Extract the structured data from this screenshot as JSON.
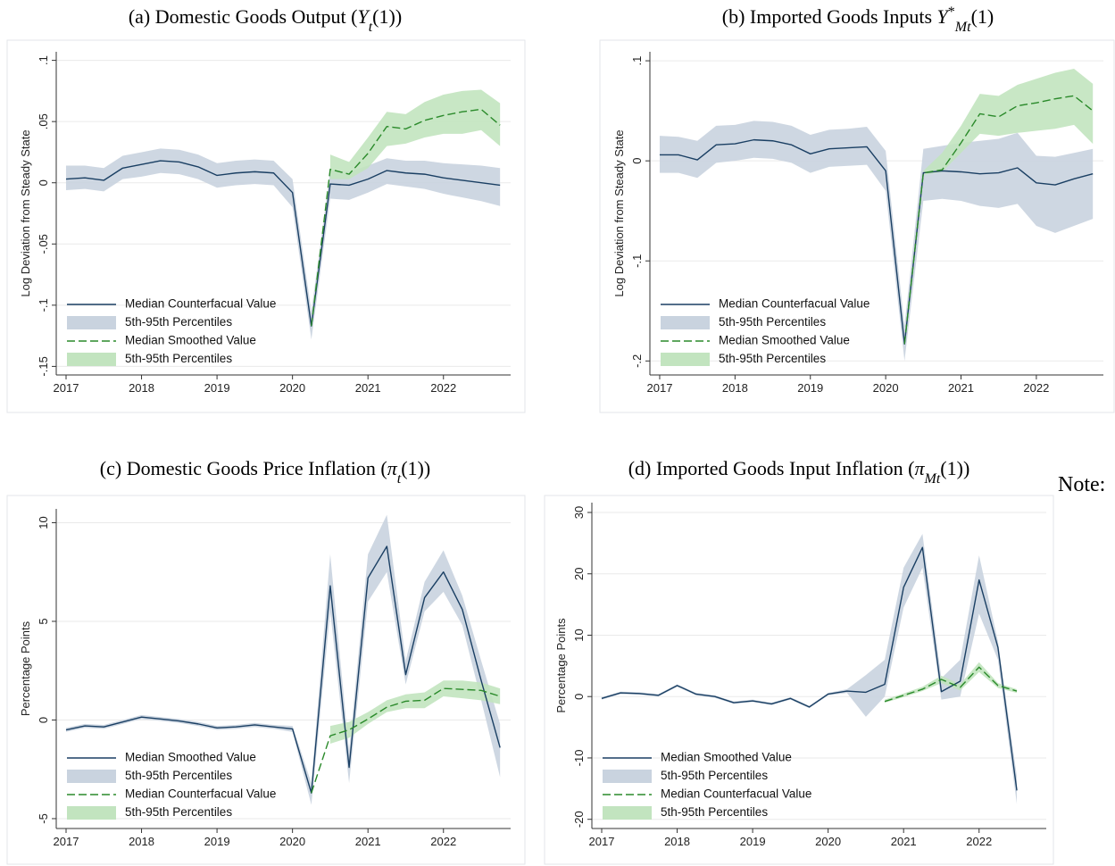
{
  "note": "Note:",
  "chart_data": [
    {
      "type": "line",
      "title": [
        "(a) Domestic Goods Output (",
        "Y",
        "t",
        "(1))"
      ],
      "title_style": [
        "normal",
        "italic",
        "sub",
        "normal"
      ],
      "ylabel": "Log Deviation from Steady State",
      "x": [
        2017,
        2017.25,
        2017.5,
        2017.75,
        2018,
        2018.25,
        2018.5,
        2018.75,
        2019,
        2019.25,
        2019.5,
        2019.75,
        2020,
        2020.25,
        2020.5,
        2020.75,
        2021,
        2021.25,
        2021.5,
        2021.75,
        2022,
        2022.25,
        2022.5,
        2022.75
      ],
      "xlim": [
        2016.87,
        2022.89
      ],
      "xticks": [
        2017,
        2018,
        2019,
        2020,
        2021,
        2022
      ],
      "ylim": [
        -0.157,
        0.107
      ],
      "yticks": [
        {
          "value": -0.15,
          "label": "-.15"
        },
        {
          "value": -0.1,
          "label": "-.1"
        },
        {
          "value": -0.05,
          "label": "-.05"
        },
        0,
        {
          "value": 0.05,
          "label": ".05"
        },
        {
          "value": 0.1,
          "label": ".1"
        }
      ],
      "grid": true,
      "legend": "lower left",
      "series": [
        {
          "name": "Median Counterfacual Value",
          "color": "#1a3f63",
          "style": "solid",
          "values": [
            0.003,
            0.004,
            0.002,
            0.012,
            0.015,
            0.018,
            0.017,
            0.013,
            0.006,
            0.008,
            0.009,
            0.008,
            -0.008,
            -0.117,
            -0.001,
            -0.002,
            0.003,
            0.01,
            0.008,
            0.007,
            0.004,
            0.002,
            0,
            -0.002
          ]
        },
        {
          "name": "5th-95th Percentiles",
          "color": "#c9d3df",
          "lower": [
            -0.006,
            -0.005,
            -0.007,
            0.003,
            0.005,
            0.008,
            0.007,
            0.003,
            -0.004,
            -0.002,
            -0.001,
            -0.002,
            -0.02,
            -0.128,
            -0.013,
            -0.014,
            -0.008,
            -0.001,
            -0.003,
            -0.005,
            -0.009,
            -0.012,
            -0.015,
            -0.019
          ],
          "upper": [
            0.014,
            0.014,
            0.012,
            0.022,
            0.025,
            0.028,
            0.027,
            0.023,
            0.016,
            0.018,
            0.019,
            0.018,
            0.003,
            -0.105,
            0.01,
            0.009,
            0.014,
            0.02,
            0.018,
            0.018,
            0.016,
            0.015,
            0.014,
            0.012
          ]
        },
        {
          "name": "Median Smoothed Value",
          "color": "#2a8a2a",
          "style": "dashed",
          "values": [
            null,
            null,
            null,
            null,
            null,
            null,
            null,
            null,
            null,
            null,
            null,
            null,
            null,
            -0.117,
            0.011,
            0.007,
            0.024,
            0.046,
            0.044,
            0.051,
            0.055,
            0.058,
            0.06,
            0.047
          ]
        },
        {
          "name": "5th-95th Percentiles",
          "color": "#c2e4bf",
          "lower": [
            null,
            null,
            null,
            null,
            null,
            null,
            null,
            null,
            null,
            null,
            null,
            null,
            null,
            null,
            0.003,
            0.003,
            0.012,
            0.03,
            0.032,
            0.037,
            0.04,
            0.04,
            0.043,
            0.03
          ],
          "upper": [
            null,
            null,
            null,
            null,
            null,
            null,
            null,
            null,
            null,
            null,
            null,
            null,
            null,
            null,
            0.023,
            0.017,
            0.037,
            0.058,
            0.056,
            0.066,
            0.072,
            0.075,
            0.076,
            0.065
          ]
        }
      ]
    },
    {
      "type": "line",
      "title": [
        "(b) Imported Goods Inputs ",
        "Y",
        "*",
        "Mt",
        "(1)"
      ],
      "title_style": [
        "normal",
        "italic",
        "sup",
        "sub",
        "normal"
      ],
      "ylabel": "Log Deviation from Steady State",
      "x": [
        2017,
        2017.25,
        2017.5,
        2017.75,
        2018,
        2018.25,
        2018.5,
        2018.75,
        2019,
        2019.25,
        2019.5,
        2019.75,
        2020,
        2020.25,
        2020.5,
        2020.75,
        2021,
        2021.25,
        2021.5,
        2021.75,
        2022,
        2022.25,
        2022.5,
        2022.75
      ],
      "xlim": [
        2016.87,
        2022.89
      ],
      "xticks": [
        2017,
        2018,
        2019,
        2020,
        2021,
        2022
      ],
      "ylim": [
        -0.214,
        0.109
      ],
      "yticks": [
        {
          "value": -0.2,
          "label": "-.2"
        },
        {
          "value": -0.1,
          "label": "-.1"
        },
        0,
        {
          "value": 0.1,
          "label": ".1"
        }
      ],
      "grid": true,
      "legend": "lower left",
      "series": [
        {
          "name": "Median Counterfacual Value",
          "color": "#1a3f63",
          "style": "solid",
          "values": [
            0.006,
            0.006,
            0.001,
            0.016,
            0.017,
            0.021,
            0.02,
            0.016,
            0.007,
            0.012,
            0.013,
            0.014,
            -0.01,
            -0.183,
            -0.012,
            -0.01,
            -0.011,
            -0.013,
            -0.012,
            -0.007,
            -0.022,
            -0.024,
            -0.018,
            -0.013
          ]
        },
        {
          "name": "5th-95th Percentiles",
          "color": "#c9d3df",
          "lower": [
            -0.012,
            -0.012,
            -0.017,
            -0.002,
            0,
            0.003,
            0.002,
            -0.002,
            -0.012,
            -0.006,
            -0.005,
            -0.004,
            -0.03,
            -0.2,
            -0.04,
            -0.038,
            -0.04,
            -0.045,
            -0.047,
            -0.043,
            -0.065,
            -0.072,
            -0.065,
            -0.058
          ],
          "upper": [
            0.025,
            0.024,
            0.02,
            0.035,
            0.036,
            0.04,
            0.039,
            0.035,
            0.026,
            0.031,
            0.032,
            0.034,
            0.01,
            -0.165,
            0.012,
            0.015,
            0.018,
            0.02,
            0.022,
            0.028,
            0.005,
            0.004,
            0.008,
            0.012
          ]
        },
        {
          "name": "Median Smoothed Value",
          "color": "#2a8a2a",
          "style": "dashed",
          "values": [
            null,
            null,
            null,
            null,
            null,
            null,
            null,
            null,
            null,
            null,
            null,
            null,
            null,
            -0.183,
            -0.012,
            -0.009,
            0.018,
            0.047,
            0.044,
            0.055,
            0.058,
            0.062,
            0.065,
            0.05
          ]
        },
        {
          "name": "5th-95th Percentiles",
          "color": "#c2e4bf",
          "lower": [
            null,
            null,
            null,
            null,
            null,
            null,
            null,
            null,
            null,
            null,
            null,
            null,
            null,
            null,
            -0.014,
            -0.011,
            0.008,
            0.027,
            0.025,
            0.028,
            0.03,
            0.032,
            0.036,
            0.017
          ],
          "upper": [
            null,
            null,
            null,
            null,
            null,
            null,
            null,
            null,
            null,
            null,
            null,
            null,
            null,
            null,
            -0.01,
            0.008,
            0.035,
            0.067,
            0.065,
            0.076,
            0.082,
            0.088,
            0.092,
            0.077
          ]
        }
      ]
    },
    {
      "type": "line",
      "title": [
        "(c) Domestic Goods Price Inflation (",
        "π",
        "t",
        "(1))"
      ],
      "title_style": [
        "normal",
        "italic",
        "sub",
        "normal"
      ],
      "ylabel": "Percentage Points",
      "x": [
        2017,
        2017.25,
        2017.5,
        2017.75,
        2018,
        2018.25,
        2018.5,
        2018.75,
        2019,
        2019.25,
        2019.5,
        2019.75,
        2020,
        2020.25,
        2020.5,
        2020.75,
        2021,
        2021.25,
        2021.5,
        2021.75,
        2022,
        2022.25,
        2022.5,
        2022.75
      ],
      "xlim": [
        2016.87,
        2022.89
      ],
      "xticks": [
        2017,
        2018,
        2019,
        2020,
        2021,
        2022
      ],
      "ylim": [
        -5.5,
        10.7
      ],
      "yticks": [
        -5,
        0,
        5,
        10
      ],
      "grid": true,
      "legend": "lower left",
      "series": [
        {
          "name": "Median Smoothed Value",
          "color": "#1a3f63",
          "style": "solid",
          "values": [
            -0.5,
            -0.3,
            -0.35,
            -0.1,
            0.15,
            0.05,
            -0.05,
            -0.2,
            -0.4,
            -0.35,
            -0.25,
            -0.35,
            -0.45,
            -3.7,
            6.8,
            -2.4,
            7.2,
            8.8,
            2.3,
            6.2,
            7.5,
            5.6,
            2.0,
            -1.4
          ]
        },
        {
          "name": "5th-95th Percentiles",
          "color": "#c9d3df",
          "lower": [
            -0.6,
            -0.4,
            -0.45,
            -0.2,
            0.05,
            -0.05,
            -0.15,
            -0.3,
            -0.5,
            -0.45,
            -0.35,
            -0.45,
            -0.6,
            -4.3,
            5.5,
            -3.2,
            6.0,
            7.5,
            1.8,
            5.5,
            6.5,
            4.8,
            1.0,
            -2.9
          ],
          "upper": [
            -0.4,
            -0.2,
            -0.25,
            0,
            0.25,
            0.15,
            0.05,
            -0.1,
            -0.3,
            -0.25,
            -0.15,
            -0.25,
            -0.3,
            -3.2,
            8.4,
            -1.6,
            8.4,
            10.4,
            3.0,
            7.0,
            8.6,
            6.3,
            3.0,
            -0.2
          ]
        },
        {
          "name": "Median Counterfacual Value",
          "color": "#2a8a2a",
          "style": "dashed",
          "values": [
            null,
            null,
            null,
            null,
            null,
            null,
            null,
            null,
            null,
            null,
            null,
            null,
            null,
            -3.7,
            -0.8,
            -0.5,
            0.05,
            0.65,
            0.95,
            1.0,
            1.6,
            1.55,
            1.5,
            1.2
          ]
        },
        {
          "name": "5th-95th Percentiles",
          "color": "#c2e4bf",
          "lower": [
            null,
            null,
            null,
            null,
            null,
            null,
            null,
            null,
            null,
            null,
            null,
            null,
            null,
            null,
            -1.2,
            -0.9,
            -0.2,
            0.4,
            0.6,
            0.6,
            1.2,
            1.1,
            1.0,
            0.8
          ],
          "upper": [
            null,
            null,
            null,
            null,
            null,
            null,
            null,
            null,
            null,
            null,
            null,
            null,
            null,
            null,
            -0.3,
            -0.1,
            0.4,
            1.0,
            1.3,
            1.4,
            2.0,
            2.0,
            1.9,
            1.6
          ]
        }
      ]
    },
    {
      "type": "line",
      "title": [
        "(d) Imported Goods Input Inflation (",
        "π",
        "Mt",
        "(1))"
      ],
      "title_style": [
        "normal",
        "italic",
        "sub",
        "normal"
      ],
      "ylabel": "Percentage Points",
      "x": [
        2017,
        2017.25,
        2017.5,
        2017.75,
        2018,
        2018.25,
        2018.5,
        2018.75,
        2019,
        2019.25,
        2019.5,
        2019.75,
        2020,
        2020.25,
        2020.5,
        2020.75,
        2021,
        2021.25,
        2021.5,
        2021.75,
        2022,
        2022.25,
        2022.5
      ],
      "xlim": [
        2016.87,
        2022.89
      ],
      "xticks": [
        2017,
        2018,
        2019,
        2020,
        2021,
        2022
      ],
      "ylim": [
        -21.5,
        31.6
      ],
      "yticks": [
        -20,
        -10,
        0,
        10,
        20,
        30
      ],
      "grid": true,
      "legend": "lower left",
      "series": [
        {
          "name": "Median Smoothed Value",
          "color": "#1a3f63",
          "style": "solid",
          "values": [
            -0.3,
            0.6,
            0.5,
            0.2,
            1.8,
            0.4,
            0,
            -1.0,
            -0.7,
            -1.2,
            -0.3,
            -1.7,
            0.4,
            0.9,
            0.7,
            2.0,
            17.8,
            24.3,
            0.8,
            2.5,
            19.0,
            8.0,
            -15.3
          ]
        },
        {
          "name": "5th-95th Percentiles",
          "color": "#c9d3df",
          "lower": [
            -0.5,
            0.4,
            0.3,
            0,
            1.6,
            0.2,
            -0.2,
            -1.2,
            -0.9,
            -1.4,
            -0.5,
            -1.9,
            0.2,
            0.6,
            -3.3,
            0,
            14.5,
            21,
            -0.5,
            0,
            13.5,
            6,
            -17.5
          ],
          "upper": [
            -0.1,
            0.8,
            0.7,
            0.4,
            2.0,
            0.6,
            0.2,
            -0.8,
            -0.5,
            -1.0,
            -0.1,
            -1.5,
            0.6,
            1.2,
            3.5,
            6,
            21,
            26.5,
            3,
            6,
            23,
            9,
            -13
          ]
        },
        {
          "name": "Median Counterfacual Value",
          "color": "#2a8a2a",
          "style": "dashed",
          "values": [
            null,
            null,
            null,
            null,
            null,
            null,
            null,
            null,
            null,
            null,
            null,
            null,
            null,
            null,
            null,
            -0.8,
            0.2,
            1.2,
            2.8,
            1.5,
            4.8,
            1.8,
            0.9
          ]
        },
        {
          "name": "5th-95th Percentiles",
          "color": "#c2e4bf",
          "lower": [
            null,
            null,
            null,
            null,
            null,
            null,
            null,
            null,
            null,
            null,
            null,
            null,
            null,
            null,
            null,
            -1,
            -0.1,
            0.9,
            2.2,
            1.0,
            4.0,
            1.4,
            0.6
          ],
          "upper": [
            null,
            null,
            null,
            null,
            null,
            null,
            null,
            null,
            null,
            null,
            null,
            null,
            null,
            null,
            null,
            -0.5,
            0.5,
            1.6,
            3.4,
            2.0,
            5.6,
            2.2,
            1.2
          ]
        }
      ]
    }
  ]
}
